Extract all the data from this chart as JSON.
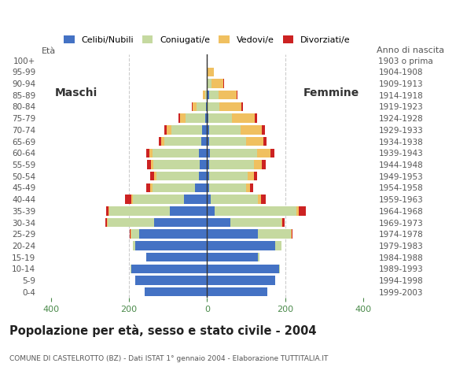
{
  "age_groups": [
    "0-4",
    "5-9",
    "10-14",
    "15-19",
    "20-24",
    "25-29",
    "30-34",
    "35-39",
    "40-44",
    "45-49",
    "50-54",
    "55-59",
    "60-64",
    "65-69",
    "70-74",
    "75-79",
    "80-84",
    "85-89",
    "90-94",
    "95-99",
    "100+"
  ],
  "birth_years": [
    "1999-2003",
    "1994-1998",
    "1989-1993",
    "1984-1988",
    "1979-1983",
    "1974-1978",
    "1969-1973",
    "1964-1968",
    "1959-1963",
    "1954-1958",
    "1949-1953",
    "1944-1948",
    "1939-1943",
    "1934-1938",
    "1929-1933",
    "1924-1928",
    "1919-1923",
    "1914-1918",
    "1909-1913",
    "1904-1908",
    "1903 o prima"
  ],
  "males": {
    "celibe": [
      160,
      185,
      195,
      155,
      185,
      175,
      135,
      95,
      60,
      30,
      20,
      18,
      20,
      15,
      12,
      5,
      2,
      0,
      0,
      0,
      0
    ],
    "coniugato": [
      0,
      0,
      2,
      2,
      5,
      20,
      120,
      155,
      130,
      110,
      110,
      120,
      120,
      95,
      80,
      50,
      25,
      5,
      0,
      0,
      0
    ],
    "vedovo": [
      0,
      0,
      0,
      0,
      0,
      2,
      2,
      3,
      5,
      5,
      5,
      5,
      8,
      8,
      12,
      15,
      10,
      5,
      0,
      0,
      0
    ],
    "divorziato": [
      0,
      0,
      0,
      0,
      0,
      2,
      4,
      5,
      15,
      12,
      10,
      10,
      8,
      5,
      5,
      3,
      2,
      0,
      0,
      0,
      0
    ]
  },
  "females": {
    "nubile": [
      155,
      175,
      185,
      130,
      175,
      130,
      60,
      20,
      10,
      5,
      5,
      5,
      8,
      5,
      5,
      3,
      2,
      5,
      2,
      0,
      0
    ],
    "coniugata": [
      0,
      0,
      2,
      5,
      15,
      85,
      130,
      210,
      120,
      95,
      100,
      115,
      120,
      95,
      80,
      60,
      30,
      25,
      10,
      2,
      0
    ],
    "vedova": [
      0,
      0,
      0,
      0,
      0,
      2,
      3,
      5,
      8,
      10,
      15,
      20,
      35,
      45,
      55,
      60,
      55,
      45,
      30,
      15,
      2
    ],
    "divorziata": [
      0,
      0,
      0,
      0,
      0,
      2,
      5,
      18,
      12,
      8,
      8,
      10,
      10,
      8,
      8,
      5,
      5,
      3,
      2,
      0,
      0
    ]
  },
  "colors": {
    "celibe": "#4472c4",
    "coniugato": "#c5d9a0",
    "vedovo": "#f0c060",
    "divorziato": "#cc2222"
  },
  "title": "Popolazione per età, sesso e stato civile - 2004",
  "subtitle": "COMUNE DI CASTELROTTO (BZ) - Dati ISTAT 1° gennaio 2004 - Elaborazione TUTTITALIA.IT",
  "xlim": 430,
  "legend_labels": [
    "Celibi/Nubili",
    "Coniugati/e",
    "Vedovi/e",
    "Divorziati/e"
  ],
  "bg_color": "#ffffff",
  "plot_bg_color": "#ffffff",
  "grid_color": "#cccccc"
}
